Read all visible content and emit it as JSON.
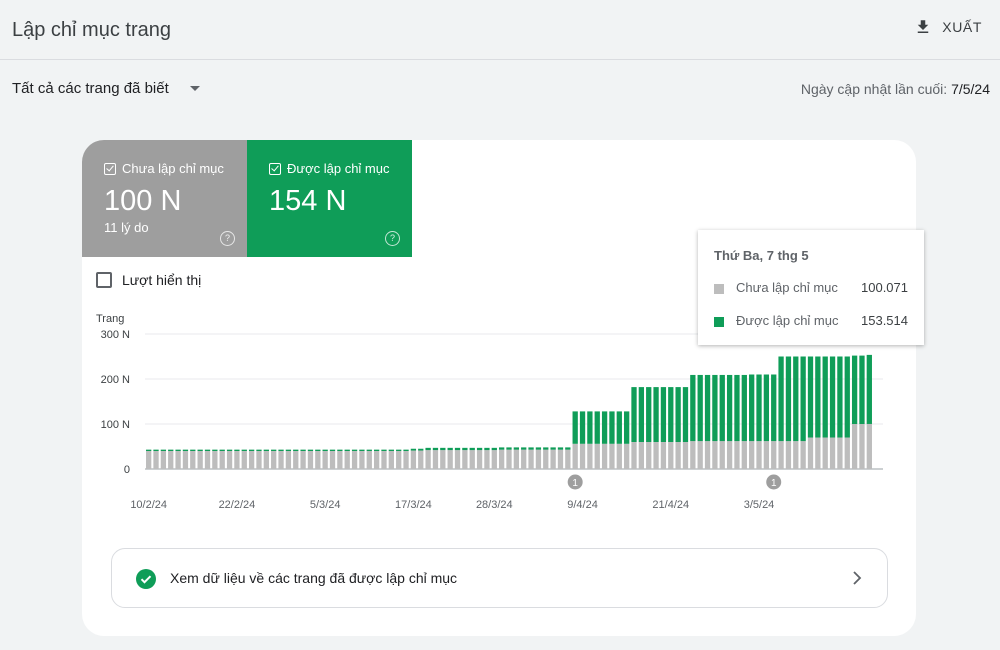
{
  "header": {
    "title": "Lập chỉ mục trang",
    "export_label": "XUẤT"
  },
  "filter": {
    "selected": "Tất cả các trang đã biết"
  },
  "updated": {
    "prefix": "Ngày cập nhật lần cuối: ",
    "date": "7/5/24"
  },
  "tiles": [
    {
      "label": "Chưa lập chỉ mục",
      "value": "100 N",
      "sub": "11 lý do",
      "color": "#9e9e9e",
      "help": "?"
    },
    {
      "label": "Được lập chỉ mục",
      "value": "154 N",
      "sub": "",
      "color": "#0f9d58",
      "help": "?"
    }
  ],
  "impressions": {
    "label": "Lượt hiển thị",
    "checked": false
  },
  "tooltip": {
    "title": "Thứ Ba, 7 thg 5",
    "rows": [
      {
        "name": "Chưa lập chỉ mục",
        "value": "100.071",
        "color": "#bdbdbd"
      },
      {
        "name": "Được lập chỉ mục",
        "value": "153.514",
        "color": "#0f9d58"
      }
    ]
  },
  "chart_data": {
    "type": "bar",
    "stacked": true,
    "ylabel": "Trang",
    "ylim": [
      0,
      300000
    ],
    "y_ticks": [
      0,
      100000,
      200000,
      300000
    ],
    "y_tick_labels": [
      "0",
      "100 N",
      "200 N",
      "300 N"
    ],
    "x_tick_labels": [
      "10/2/24",
      "22/2/24",
      "5/3/24",
      "17/3/24",
      "28/3/24",
      "9/4/24",
      "21/4/24",
      "3/5/24"
    ],
    "x_tick_indices": [
      0,
      12,
      24,
      36,
      47,
      59,
      71,
      83
    ],
    "annotations": [
      {
        "index": 58,
        "label": "1"
      },
      {
        "index": 85,
        "label": "1"
      }
    ],
    "series": [
      {
        "name": "Chưa lập chỉ mục",
        "color": "#bdbdbd",
        "values": [
          40000,
          40000,
          40000,
          40000,
          40000,
          40000,
          40000,
          40000,
          40000,
          40000,
          40000,
          40000,
          40000,
          40000,
          40000,
          40000,
          40000,
          40000,
          40000,
          40000,
          40000,
          40000,
          40000,
          40000,
          40000,
          40000,
          40000,
          40000,
          40000,
          40000,
          40000,
          40000,
          40000,
          40000,
          40000,
          40000,
          41000,
          41000,
          42000,
          42000,
          42000,
          42000,
          42000,
          42000,
          42000,
          42000,
          42000,
          42000,
          43000,
          43000,
          43000,
          43000,
          43000,
          43000,
          43000,
          43000,
          43000,
          43000,
          56000,
          56000,
          56000,
          56000,
          56000,
          56000,
          56000,
          56000,
          60000,
          60000,
          60000,
          60000,
          60000,
          60000,
          60000,
          60000,
          62000,
          62000,
          62000,
          62000,
          62000,
          62000,
          62000,
          62000,
          62000,
          62000,
          62000,
          62000,
          62000,
          62000,
          62000,
          62000,
          70000,
          70000,
          70000,
          70000,
          70000,
          70000,
          100000,
          100000,
          100071
        ]
      },
      {
        "name": "Được lập chỉ mục",
        "color": "#0f9d58",
        "values": [
          3000,
          3000,
          3000,
          3000,
          3000,
          3000,
          3000,
          3000,
          3000,
          3000,
          3000,
          3000,
          3000,
          3000,
          3000,
          3000,
          3000,
          3000,
          3000,
          3000,
          3000,
          3000,
          3000,
          3000,
          3000,
          3000,
          3000,
          3000,
          3000,
          3000,
          3000,
          3000,
          3000,
          3000,
          3000,
          3000,
          4000,
          4000,
          5000,
          5000,
          5000,
          5000,
          5000,
          5000,
          5000,
          5000,
          5000,
          5000,
          5000,
          5000,
          5000,
          5000,
          5000,
          5000,
          5000,
          5000,
          5000,
          5000,
          72000,
          72000,
          72000,
          72000,
          72000,
          72000,
          72000,
          72000,
          122000,
          122000,
          122000,
          122000,
          122000,
          122000,
          122000,
          122000,
          147000,
          147000,
          147000,
          147000,
          147000,
          147000,
          147000,
          147000,
          148000,
          148000,
          148000,
          148000,
          188000,
          188000,
          188000,
          188000,
          180000,
          180000,
          180000,
          180000,
          180000,
          180000,
          152000,
          152000,
          153514
        ]
      }
    ]
  }
}
